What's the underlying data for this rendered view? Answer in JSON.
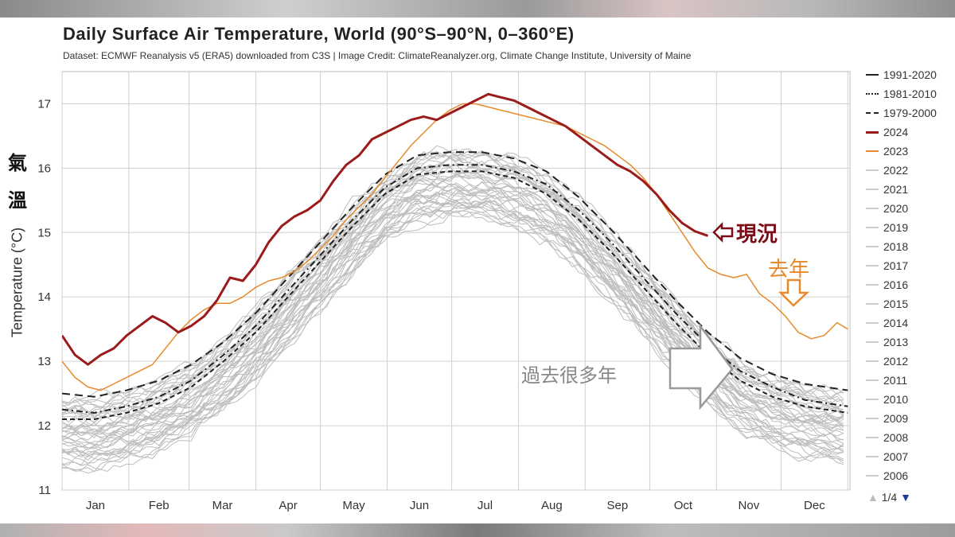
{
  "chart_data": {
    "type": "line",
    "title": "Daily Surface Air Temperature, World (90°S–90°N, 0–360°E)",
    "subtitle": "Dataset: ECMWF Reanalysis v5 (ERA5) downloaded from C3S | Image Credit: ClimateReanalyzer.org, Climate Change Institute, University of Maine",
    "ylabel": "Temperature (°C)",
    "xlabel": "",
    "ylim": [
      11,
      17.5
    ],
    "xlim": [
      0,
      366
    ],
    "grid": true,
    "legend_position": "right",
    "y_ticks": [
      11,
      12,
      13,
      14,
      15,
      16,
      17
    ],
    "month_labels": [
      "Jan",
      "Feb",
      "Mar",
      "Apr",
      "May",
      "Jun",
      "Jul",
      "Aug",
      "Sep",
      "Oct",
      "Nov",
      "Dec"
    ],
    "month_ticks": [
      0,
      31,
      59,
      90,
      120,
      151,
      181,
      212,
      243,
      273,
      304,
      334,
      365
    ],
    "series": [
      {
        "name": "2024",
        "color": "#9b1b1b",
        "width": 3,
        "dash": "",
        "x": [
          0,
          6,
          12,
          18,
          24,
          30,
          36,
          42,
          48,
          54,
          60,
          66,
          72,
          78,
          84,
          90,
          96,
          102,
          108,
          114,
          120,
          126,
          132,
          138,
          144,
          150,
          156,
          162,
          168,
          174,
          180,
          186,
          192,
          198,
          204,
          210,
          216,
          222,
          228,
          234,
          240,
          246,
          252,
          258,
          264,
          270,
          276,
          282,
          288,
          294,
          300
        ],
        "values": [
          13.4,
          13.1,
          12.95,
          13.1,
          13.2,
          13.4,
          13.55,
          13.7,
          13.6,
          13.45,
          13.55,
          13.7,
          13.95,
          14.3,
          14.25,
          14.5,
          14.85,
          15.1,
          15.25,
          15.35,
          15.5,
          15.8,
          16.05,
          16.2,
          16.45,
          16.55,
          16.65,
          16.75,
          16.8,
          16.75,
          16.85,
          16.95,
          17.05,
          17.15,
          17.1,
          17.05,
          16.95,
          16.85,
          16.75,
          16.65,
          16.5,
          16.35,
          16.2,
          16.05,
          15.95,
          15.8,
          15.6,
          15.35,
          15.15,
          15.02,
          14.95
        ]
      },
      {
        "name": "2023",
        "color": "#e8892b",
        "width": 1.5,
        "dash": "",
        "x": [
          0,
          6,
          12,
          18,
          24,
          30,
          36,
          42,
          48,
          54,
          60,
          66,
          72,
          78,
          84,
          90,
          96,
          102,
          108,
          114,
          120,
          126,
          132,
          138,
          144,
          150,
          156,
          162,
          168,
          174,
          180,
          186,
          192,
          198,
          204,
          210,
          216,
          222,
          228,
          234,
          240,
          246,
          252,
          258,
          264,
          270,
          276,
          282,
          288,
          294,
          300,
          306,
          312,
          318,
          324,
          330,
          336,
          342,
          348,
          354,
          360,
          365
        ],
        "values": [
          13.0,
          12.75,
          12.6,
          12.55,
          12.65,
          12.75,
          12.85,
          12.95,
          13.2,
          13.45,
          13.65,
          13.8,
          13.9,
          13.9,
          14.0,
          14.15,
          14.25,
          14.3,
          14.4,
          14.55,
          14.75,
          14.95,
          15.2,
          15.4,
          15.6,
          15.85,
          16.1,
          16.35,
          16.55,
          16.75,
          16.9,
          17.0,
          17.0,
          16.95,
          16.9,
          16.85,
          16.8,
          16.75,
          16.7,
          16.65,
          16.55,
          16.45,
          16.35,
          16.2,
          16.05,
          15.85,
          15.6,
          15.3,
          15.0,
          14.7,
          14.45,
          14.35,
          14.3,
          14.35,
          14.05,
          13.9,
          13.7,
          13.45,
          13.35,
          13.4,
          13.6,
          13.5
        ]
      },
      {
        "name": "1991-2020",
        "color": "#222222",
        "width": 2,
        "dash": "10,6",
        "x": [
          0,
          15,
          30,
          45,
          60,
          75,
          90,
          105,
          120,
          135,
          150,
          165,
          180,
          195,
          210,
          225,
          240,
          255,
          270,
          285,
          300,
          315,
          330,
          345,
          365
        ],
        "values": [
          12.5,
          12.45,
          12.55,
          12.7,
          12.95,
          13.3,
          13.75,
          14.3,
          14.85,
          15.4,
          15.9,
          16.2,
          16.25,
          16.25,
          16.15,
          15.95,
          15.55,
          15.05,
          14.5,
          13.95,
          13.45,
          13.05,
          12.8,
          12.65,
          12.55
        ]
      },
      {
        "name": "1981-2010",
        "color": "#222222",
        "width": 2,
        "dash": "8,4,2,4",
        "x": [
          0,
          15,
          30,
          45,
          60,
          75,
          90,
          105,
          120,
          135,
          150,
          165,
          180,
          195,
          210,
          225,
          240,
          255,
          270,
          285,
          300,
          315,
          330,
          345,
          365
        ],
        "values": [
          12.25,
          12.2,
          12.3,
          12.45,
          12.7,
          13.1,
          13.55,
          14.1,
          14.65,
          15.2,
          15.7,
          16.0,
          16.05,
          16.05,
          15.95,
          15.75,
          15.35,
          14.85,
          14.3,
          13.75,
          13.25,
          12.85,
          12.6,
          12.4,
          12.3
        ]
      },
      {
        "name": "1979-2000",
        "color": "#222222",
        "width": 2,
        "dash": "6,4",
        "x": [
          0,
          15,
          30,
          45,
          60,
          75,
          90,
          105,
          120,
          135,
          150,
          165,
          180,
          195,
          210,
          225,
          240,
          255,
          270,
          285,
          300,
          315,
          330,
          345,
          365
        ],
        "values": [
          12.1,
          12.1,
          12.2,
          12.35,
          12.6,
          13.0,
          13.45,
          14.0,
          14.55,
          15.1,
          15.6,
          15.9,
          15.95,
          15.95,
          15.85,
          15.6,
          15.2,
          14.7,
          14.15,
          13.6,
          13.1,
          12.7,
          12.45,
          12.3,
          12.2
        ]
      }
    ],
    "background_years": [
      "2022",
      "2021",
      "2020",
      "2019",
      "2018",
      "2017",
      "2016",
      "2015",
      "2014",
      "2013",
      "2012",
      "2011",
      "2010",
      "2009",
      "2008",
      "2007",
      "2006"
    ],
    "background_color": "#bdbdbd"
  },
  "legend": {
    "items": [
      {
        "label": "1991-2020",
        "color": "#222222",
        "style": "solid"
      },
      {
        "label": "1981-2010",
        "color": "#222222",
        "style": "dashdot"
      },
      {
        "label": "1979-2000",
        "color": "#222222",
        "style": "dashed"
      },
      {
        "label": "2024",
        "color": "#9b1b1b",
        "style": "bold"
      },
      {
        "label": "2023",
        "color": "#e8892b",
        "style": "solid"
      },
      {
        "label": "2022",
        "color": "#cccccc",
        "style": "solid"
      },
      {
        "label": "2021",
        "color": "#cccccc",
        "style": "solid"
      },
      {
        "label": "2020",
        "color": "#cccccc",
        "style": "solid"
      },
      {
        "label": "2019",
        "color": "#cccccc",
        "style": "solid"
      },
      {
        "label": "2018",
        "color": "#cccccc",
        "style": "solid"
      },
      {
        "label": "2017",
        "color": "#cccccc",
        "style": "solid"
      },
      {
        "label": "2016",
        "color": "#cccccc",
        "style": "solid"
      },
      {
        "label": "2015",
        "color": "#cccccc",
        "style": "solid"
      },
      {
        "label": "2014",
        "color": "#cccccc",
        "style": "solid"
      },
      {
        "label": "2013",
        "color": "#cccccc",
        "style": "solid"
      },
      {
        "label": "2012",
        "color": "#cccccc",
        "style": "solid"
      },
      {
        "label": "2011",
        "color": "#cccccc",
        "style": "solid"
      },
      {
        "label": "2010",
        "color": "#cccccc",
        "style": "solid"
      },
      {
        "label": "2009",
        "color": "#cccccc",
        "style": "solid"
      },
      {
        "label": "2008",
        "color": "#cccccc",
        "style": "solid"
      },
      {
        "label": "2007",
        "color": "#cccccc",
        "style": "solid"
      },
      {
        "label": "2006",
        "color": "#cccccc",
        "style": "solid"
      }
    ],
    "pager": {
      "text": "1/4",
      "up_icon": "triangle-up-icon",
      "down_icon": "triangle-down-icon"
    }
  },
  "annotations": {
    "qiwen_1": "氣",
    "qiwen_2": "溫",
    "now": "現況",
    "last_year": "去年",
    "many_years": "過去很多年"
  },
  "colors": {
    "annotation_now": "#7a0d18",
    "annotation_last_year": "#e8892b",
    "annotation_many_years": "#888888"
  }
}
